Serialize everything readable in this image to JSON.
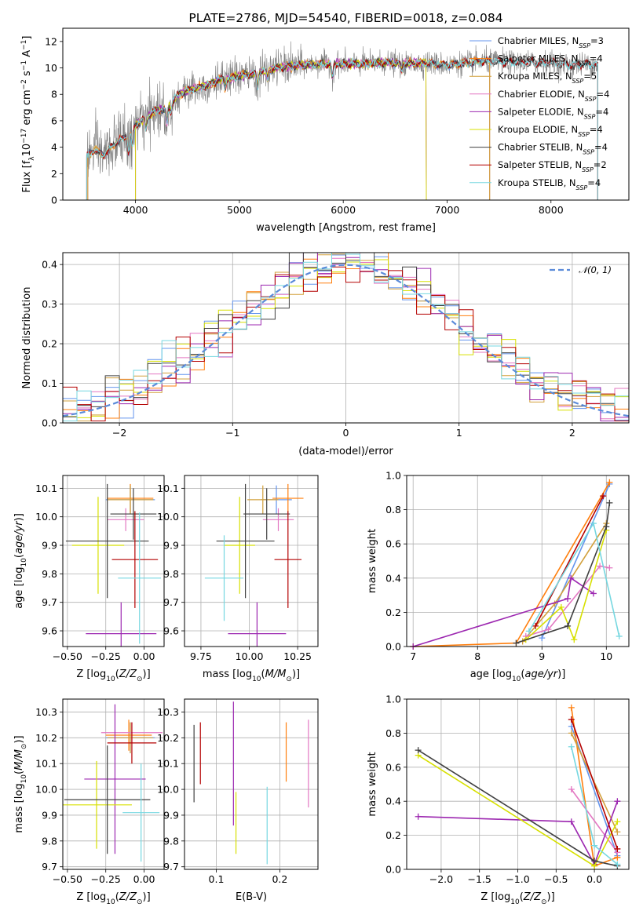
{
  "colors": {
    "Chabrier MILES": "#6495ED",
    "Salpeter MILES": "#FF7F0E",
    "Kroupa MILES": "#D2A03C",
    "Chabrier ELODIE": "#E377C2",
    "Salpeter ELODIE": "#9C27B0",
    "Kroupa ELODIE": "#D7E000",
    "Chabrier STELIB": "#404040",
    "Salpeter STELIB": "#B40000",
    "Kroupa STELIB": "#76D7E0",
    "data": "#808080"
  },
  "chart_data": [
    {
      "id": "spectrum",
      "type": "line",
      "title": "PLATE=2786, MJD=54540, FIBERID=0018, z=0.084",
      "xlabel": "wavelength [Angstrom, rest frame]",
      "ylabel": "Flux [f_λ10^-17 erg cm^-2 s^-1 A^-1]",
      "xlim": [
        3300,
        8750
      ],
      "ylim": [
        0,
        13
      ],
      "xticks": [
        "4000",
        "5000",
        "6000",
        "7000",
        "8000"
      ],
      "yticks": [
        "0",
        "2",
        "4",
        "6",
        "8",
        "10",
        "12"
      ],
      "grid": false,
      "legend_position": "right",
      "legend": [
        "Chabrier MILES, N_SSP=3",
        "Salpeter MILES, N_SSP=4",
        "Kroupa MILES, N_SSP=5",
        "Chabrier ELODIE, N_SSP=4",
        "Salpeter ELODIE, N_SSP=4",
        "Kroupa ELODIE, N_SSP=4",
        "Chabrier STELIB, N_SSP=4",
        "Salpeter STELIB, N_SSP=2",
        "Kroupa STELIB, N_SSP=4"
      ],
      "continuum": {
        "x": [
          3530,
          3600,
          3700,
          3800,
          3900,
          4000,
          4100,
          4200,
          4300,
          4400,
          4500,
          4600,
          4700,
          4800,
          4900,
          5000,
          5100,
          5200,
          5300,
          5400,
          5500,
          5600,
          5800,
          6000,
          6200,
          6400,
          6600,
          6800,
          7000,
          7200,
          7400,
          7600,
          7800,
          8000,
          8200,
          8400,
          8450
        ],
        "y": [
          3.3,
          3.8,
          3.4,
          4.3,
          4.8,
          5.7,
          6.2,
          6.8,
          6.9,
          7.9,
          8.3,
          8.5,
          8.7,
          9.1,
          9.2,
          9.4,
          9.5,
          9.7,
          9.9,
          10.1,
          10.1,
          10.2,
          10.3,
          10.3,
          10.3,
          10.4,
          10.3,
          10.4,
          10.2,
          10.4,
          10.5,
          10.4,
          10.4,
          10.4,
          10.2,
          10.3,
          10.2
        ]
      },
      "absorption_features": [
        {
          "x": 3934,
          "depth": 1.6
        },
        {
          "x": 3969,
          "depth": 1.5
        },
        {
          "x": 4102,
          "depth": 0.8
        },
        {
          "x": 4304,
          "depth": 1.1
        },
        {
          "x": 4341,
          "depth": 0.6
        },
        {
          "x": 4861,
          "depth": 0.7
        },
        {
          "x": 5175,
          "depth": 1.2
        },
        {
          "x": 5270,
          "depth": 0.6
        },
        {
          "x": 5895,
          "depth": 1.0
        },
        {
          "x": 6563,
          "depth": 0.5
        }
      ]
    },
    {
      "id": "residuals",
      "type": "histogram",
      "xlabel": "(data-model)/error",
      "ylabel": "Normed distribution",
      "xlim": [
        -2.5,
        2.5
      ],
      "ylim": [
        0,
        0.43
      ],
      "xticks": [
        "−2",
        "−1",
        "0",
        "1",
        "2"
      ],
      "yticks": [
        "0.0",
        "0.1",
        "0.2",
        "0.3",
        "0.4"
      ],
      "grid": true,
      "legend_position": "top-right",
      "legend": [
        "𝒩(0, 1)"
      ],
      "bins": 40
    },
    {
      "id": "age-vs-Z",
      "type": "errorbar",
      "xlabel": "Z [log10(Z/Z⊙)]",
      "ylabel": "age [log10(age/yr)]",
      "xlim": [
        -0.53,
        0.13
      ],
      "ylim": [
        9.545,
        10.145
      ],
      "xticks": [
        "−0.50",
        "−0.25",
        "0.00"
      ],
      "yticks": [
        "9.6",
        "9.7",
        "9.8",
        "9.9",
        "10.0",
        "10.1"
      ],
      "grid": true,
      "points": [
        {
          "model": "Chabrier MILES",
          "x": -0.09,
          "xerr": 0.16,
          "y": 10.06,
          "yerr": 0.05
        },
        {
          "model": "Salpeter MILES",
          "x": -0.09,
          "xerr": 0.15,
          "y": 10.065,
          "yerr": 0.05
        },
        {
          "model": "Kroupa MILES",
          "x": -0.09,
          "xerr": 0.15,
          "y": 10.06,
          "yerr": 0.05
        },
        {
          "model": "Chabrier ELODIE",
          "x": -0.12,
          "xerr": 0.12,
          "y": 9.99,
          "yerr": 0.04
        },
        {
          "model": "Salpeter ELODIE",
          "x": -0.15,
          "xerr": 0.23,
          "y": 9.59,
          "yerr": 0.11
        },
        {
          "model": "Kroupa ELODIE",
          "x": -0.3,
          "xerr": 0.17,
          "y": 9.9,
          "yerr": 0.17
        },
        {
          "model": "Chabrier STELIB",
          "x": -0.07,
          "xerr": 0.15,
          "y": 10.01,
          "yerr": 0.09
        },
        {
          "model": "Chabrier STELIB",
          "x": -0.24,
          "xerr": 0.27,
          "y": 9.915,
          "yerr": 0.2
        },
        {
          "model": "Salpeter STELIB",
          "x": -0.06,
          "xerr": 0.15,
          "y": 9.85,
          "yerr": 0.17
        },
        {
          "model": "Kroupa STELIB",
          "x": -0.03,
          "xerr": 0.14,
          "y": 9.785,
          "yerr": 0.23
        }
      ]
    },
    {
      "id": "age-vs-mass",
      "type": "errorbar",
      "xlabel": "mass [log10(M/M⊙)]",
      "ylabel": "",
      "xlim": [
        9.665,
        10.355
      ],
      "ylim": [
        9.545,
        10.145
      ],
      "xticks": [
        "9.75",
        "10.00",
        "10.25"
      ],
      "yticks": [
        "9.6",
        "9.7",
        "9.8",
        "9.9",
        "10.0",
        "10.1"
      ],
      "grid": true,
      "points": [
        {
          "model": "Chabrier MILES",
          "x": 10.14,
          "xerr": 0.08,
          "y": 10.06,
          "yerr": 0.05
        },
        {
          "model": "Salpeter MILES",
          "x": 10.2,
          "xerr": 0.08,
          "y": 10.065,
          "yerr": 0.05
        },
        {
          "model": "Kroupa MILES",
          "x": 10.07,
          "xerr": 0.08,
          "y": 10.06,
          "yerr": 0.05
        },
        {
          "model": "Chabrier ELODIE",
          "x": 10.15,
          "xerr": 0.08,
          "y": 9.99,
          "yerr": 0.04
        },
        {
          "model": "Salpeter ELODIE",
          "x": 10.04,
          "xerr": 0.15,
          "y": 9.59,
          "yerr": 0.11
        },
        {
          "model": "Kroupa ELODIE",
          "x": 9.95,
          "xerr": 0.08,
          "y": 9.9,
          "yerr": 0.17
        },
        {
          "model": "Chabrier STELIB",
          "x": 10.09,
          "xerr": 0.12,
          "y": 10.01,
          "yerr": 0.09
        },
        {
          "model": "Chabrier STELIB",
          "x": 9.98,
          "xerr": 0.15,
          "y": 9.915,
          "yerr": 0.2
        },
        {
          "model": "Salpeter STELIB",
          "x": 10.2,
          "xerr": 0.07,
          "y": 9.85,
          "yerr": 0.17
        },
        {
          "model": "Kroupa STELIB",
          "x": 9.87,
          "xerr": 0.1,
          "y": 9.785,
          "yerr": 0.15
        }
      ]
    },
    {
      "id": "weight-vs-age",
      "type": "line",
      "xlabel": "age [log10(age/yr)]",
      "ylabel": "mass weight",
      "xlim": [
        6.9,
        10.35
      ],
      "ylim": [
        0,
        1.0
      ],
      "xticks": [
        "7",
        "8",
        "9",
        "10"
      ],
      "yticks": [
        "0.0",
        "0.2",
        "0.4",
        "0.6",
        "0.8",
        "1.0"
      ],
      "grid": true,
      "series": [
        {
          "model": "Chabrier MILES",
          "x": [
            9.0,
            10.05
          ],
          "y": [
            0.05,
            0.95
          ]
        },
        {
          "model": "Salpeter MILES",
          "x": [
            7.0,
            8.6,
            10.05
          ],
          "y": [
            0.0,
            0.02,
            0.96
          ]
        },
        {
          "model": "Kroupa MILES",
          "x": [
            8.7,
            9.2,
            10.0
          ],
          "y": [
            0.03,
            0.25,
            0.72
          ]
        },
        {
          "model": "Chabrier ELODIE",
          "x": [
            8.75,
            9.1,
            9.9,
            10.05
          ],
          "y": [
            0.06,
            0.1,
            0.47,
            0.46
          ]
        },
        {
          "model": "Salpeter ELODIE",
          "x": [
            7.0,
            9.4,
            9.45,
            9.8
          ],
          "y": [
            0.0,
            0.28,
            0.4,
            0.31
          ]
        },
        {
          "model": "Kroupa ELODIE",
          "x": [
            8.75,
            9.3,
            9.5,
            10.0
          ],
          "y": [
            0.04,
            0.23,
            0.04,
            0.68
          ]
        },
        {
          "model": "Chabrier STELIB",
          "x": [
            8.6,
            9.4,
            10.0,
            10.05
          ],
          "y": [
            0.02,
            0.12,
            0.7,
            0.84
          ]
        },
        {
          "model": "Salpeter STELIB",
          "x": [
            8.9,
            9.95
          ],
          "y": [
            0.12,
            0.88
          ]
        },
        {
          "model": "Kroupa STELIB",
          "x": [
            8.8,
            9.8,
            10.2
          ],
          "y": [
            0.09,
            0.72,
            0.06
          ]
        }
      ]
    },
    {
      "id": "mass-vs-Z",
      "type": "errorbar",
      "xlabel": "Z [log10(Z/Z⊙)]",
      "ylabel": "mass [log10(M/M⊙)]",
      "xlim": [
        -0.53,
        0.13
      ],
      "ylim": [
        9.69,
        10.35
      ],
      "xticks": [
        "−0.50",
        "−0.25",
        "0.00"
      ],
      "yticks": [
        "9.7",
        "9.8",
        "9.9",
        "10.0",
        "10.1",
        "10.2",
        "10.3"
      ],
      "grid": true,
      "points": [
        {
          "model": "Chabrier MILES",
          "x": -0.09,
          "xerr": 0.16,
          "y": 10.2,
          "yerr": 0.06
        },
        {
          "model": "Salpeter MILES",
          "x": -0.1,
          "xerr": 0.15,
          "y": 10.21,
          "yerr": 0.06
        },
        {
          "model": "Kroupa MILES",
          "x": -0.09,
          "xerr": 0.15,
          "y": 10.2,
          "yerr": 0.06
        },
        {
          "model": "Chabrier ELODIE",
          "x": -0.08,
          "xerr": 0.2,
          "y": 10.22,
          "yerr": 0.04
        },
        {
          "model": "Salpeter ELODIE",
          "x": -0.19,
          "xerr": 0.2,
          "y": 10.04,
          "yerr": 0.29
        },
        {
          "model": "Kroupa ELODIE",
          "x": -0.31,
          "xerr": 0.23,
          "y": 9.94,
          "yerr": 0.17
        },
        {
          "model": "Chabrier STELIB",
          "x": -0.24,
          "xerr": 0.28,
          "y": 9.96,
          "yerr": 0.21
        },
        {
          "model": "Salpeter STELIB",
          "x": -0.08,
          "xerr": 0.16,
          "y": 10.18,
          "yerr": 0.08
        },
        {
          "model": "Kroupa STELIB",
          "x": -0.02,
          "xerr": 0.12,
          "y": 9.91,
          "yerr": 0.19
        }
      ]
    },
    {
      "id": "mass-vs-EBV",
      "type": "errorbar",
      "xlabel": "E(B-V)",
      "ylabel": "",
      "xlim": [
        0.05,
        0.26
      ],
      "ylim": [
        9.69,
        10.35
      ],
      "xticks": [
        "0.1",
        "0.2"
      ],
      "yticks": [
        "9.7",
        "9.8",
        "9.9",
        "10.0",
        "10.1",
        "10.2",
        "10.3"
      ],
      "grid": true,
      "points": [
        {
          "model": "Chabrier STELIB",
          "x": 0.065,
          "y": 10.1,
          "yerr": 0.15
        },
        {
          "model": "Salpeter STELIB",
          "x": 0.075,
          "y": 10.14,
          "yerr": 0.12
        },
        {
          "model": "Salpeter ELODIE",
          "x": 0.127,
          "y": 10.1,
          "yerr": 0.24
        },
        {
          "model": "Kroupa ELODIE",
          "x": 0.131,
          "y": 9.87,
          "yerr": 0.12
        },
        {
          "model": "Kroupa STELIB",
          "x": 0.18,
          "y": 9.86,
          "yerr": 0.15
        },
        {
          "model": "Salpeter MILES",
          "x": 0.21,
          "y": 10.145,
          "yerr": 0.115
        },
        {
          "model": "Chabrier ELODIE",
          "x": 0.245,
          "y": 10.1,
          "yerr": 0.17
        }
      ]
    },
    {
      "id": "weight-vs-Z",
      "type": "line",
      "xlabel": "Z [log10(Z/Z⊙)]",
      "ylabel": "mass weight",
      "xlim": [
        -2.45,
        0.45
      ],
      "ylim": [
        0,
        1.0
      ],
      "xticks": [
        "−2.0",
        "−1.5",
        "−1.0",
        "−0.5",
        "0.0"
      ],
      "yticks": [
        "0.0",
        "0.2",
        "0.4",
        "0.6",
        "0.8",
        "1.0"
      ],
      "grid": true,
      "series": [
        {
          "model": "Chabrier MILES",
          "x": [
            -0.3,
            0.3
          ],
          "y": [
            0.84,
            0.08
          ]
        },
        {
          "model": "Salpeter MILES",
          "x": [
            -0.3,
            0.0,
            0.3
          ],
          "y": [
            0.95,
            0.02,
            0.07
          ]
        },
        {
          "model": "Kroupa MILES",
          "x": [
            -0.3,
            0.3
          ],
          "y": [
            0.8,
            0.22
          ]
        },
        {
          "model": "Chabrier ELODIE",
          "x": [
            -0.3,
            0.3
          ],
          "y": [
            0.47,
            0.1
          ]
        },
        {
          "model": "Salpeter ELODIE",
          "x": [
            -2.3,
            -0.3,
            0.0,
            0.3
          ],
          "y": [
            0.31,
            0.28,
            0.03,
            0.4
          ]
        },
        {
          "model": "Kroupa ELODIE",
          "x": [
            -2.3,
            0.0,
            0.3
          ],
          "y": [
            0.67,
            0.02,
            0.28
          ]
        },
        {
          "model": "Chabrier STELIB",
          "x": [
            -2.3,
            0.0,
            0.3
          ],
          "y": [
            0.7,
            0.05,
            0.02
          ]
        },
        {
          "model": "Salpeter STELIB",
          "x": [
            -0.3,
            0.3
          ],
          "y": [
            0.88,
            0.12
          ]
        },
        {
          "model": "Kroupa STELIB",
          "x": [
            -0.3,
            0.0,
            0.3
          ],
          "y": [
            0.72,
            0.14,
            0.03
          ]
        }
      ]
    }
  ]
}
